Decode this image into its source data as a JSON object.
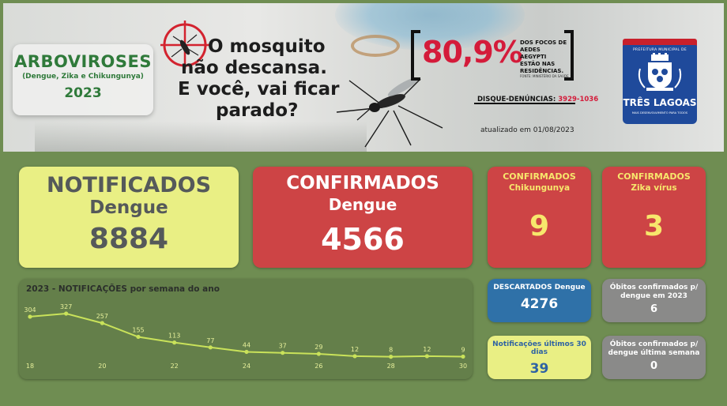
{
  "banner": {
    "title": "ARBOVIROSES",
    "subtitle": "(Dengue, Zika e Chikungunya)",
    "year": "2023",
    "campaign_lines": [
      "O mosquito",
      "não descansa.",
      "E você, vai ficar",
      "parado?"
    ],
    "stat_value": "80,9%",
    "stat_lines": [
      "DOS FOCOS DE",
      "AEDES AEGYPTI",
      "ESTÃO NAS",
      "RESIDÊNCIAS."
    ],
    "stat_source": "FONTE: MINISTÉRIO DA SAÚDE",
    "hotline_label": "DISQUE-DENÚNCIAS:",
    "hotline_number": "3929-1036",
    "updated": "atualizado em 01/08/2023",
    "logo": {
      "prefeitura": "PREFEITURA MUNICIPAL DE",
      "city": "TRÊS LAGOAS",
      "slogan": "MAIS DESENVOLVIMENTO PARA TODOS"
    }
  },
  "kpis": {
    "notificados": {
      "line1": "NOTIFICADOS",
      "line2": "Dengue",
      "value": "8884"
    },
    "confirmados": {
      "line1": "CONFIRMADOS",
      "line2": "Dengue",
      "value": "4566"
    },
    "chikungunya": {
      "line1": "CONFIRMADOS",
      "line2": "Chikungunya",
      "value": "9"
    },
    "zika": {
      "line1": "CONFIRMADOS",
      "line2": "Zika vírus",
      "value": "3"
    },
    "descartados": {
      "label": "DESCARTADOS Dengue",
      "value": "4276"
    },
    "obitos_2023": {
      "label": "Óbitos confirmados p/ dengue em 2023",
      "value": "6"
    },
    "notif_30d": {
      "label": "Notificações últimos 30 dias",
      "value": "39"
    },
    "obitos_semana": {
      "label": "Óbitos confirmados p/ dengue última semana",
      "value": "0"
    }
  },
  "colors": {
    "background": "#6f8d52",
    "yellow_card": "#e9ef84",
    "red_card": "#cd4445",
    "blue_card": "#2f71a8",
    "grey_card": "#8a8a89",
    "line": "#c9e25a"
  },
  "chart_data": {
    "type": "line",
    "title": "2023 - NOTIFICAÇÕES por semana do ano",
    "x": [
      18,
      19,
      20,
      21,
      22,
      23,
      24,
      25,
      26,
      27,
      28,
      29,
      30
    ],
    "values": [
      304,
      327,
      257,
      155,
      113,
      77,
      44,
      37,
      29,
      12,
      8,
      12,
      9
    ],
    "x_tick_labels": [
      "18",
      "20",
      "22",
      "24",
      "26",
      "28",
      "30"
    ],
    "xlabel": "",
    "ylabel": "",
    "grid": false,
    "legend": "none"
  }
}
